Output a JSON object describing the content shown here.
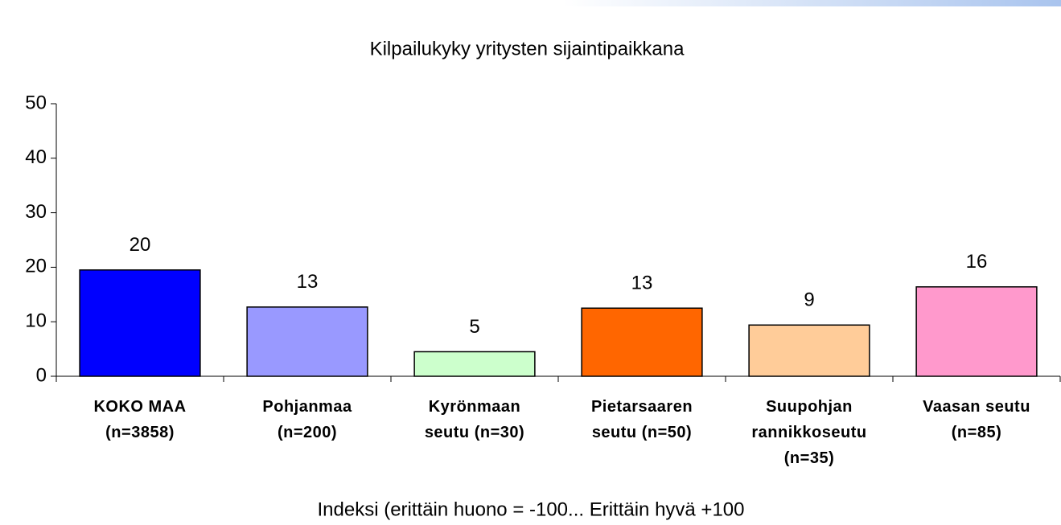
{
  "chart_data": {
    "type": "bar",
    "title": "Kilpailukyky yritysten sijaintipaikkana",
    "x_label": "Indeksi (erittäin huono = -100... Erittäin hyvä +100",
    "categories": [
      "KOKO MAA (n=3858)",
      "Pohjanmaa (n=200)",
      "Kyrönmaan seutu (n=30)",
      "Pietarsaaren seutu (n=50)",
      "Suupohjan rannikkoseutu (n=35)",
      "Vaasan seutu (n=85)"
    ],
    "values": [
      19.5,
      12.7,
      4.5,
      12.5,
      9.4,
      16.4
    ],
    "value_labels": [
      "20",
      "13",
      "5",
      "13",
      "9",
      "16"
    ],
    "colors": [
      "#0000ff",
      "#9999ff",
      "#ccffcc",
      "#ff6600",
      "#ffcc99",
      "#ff99cc"
    ],
    "ylim": [
      0,
      50
    ],
    "yticks": [
      0,
      10,
      20,
      30,
      40,
      50
    ],
    "grid": false
  }
}
